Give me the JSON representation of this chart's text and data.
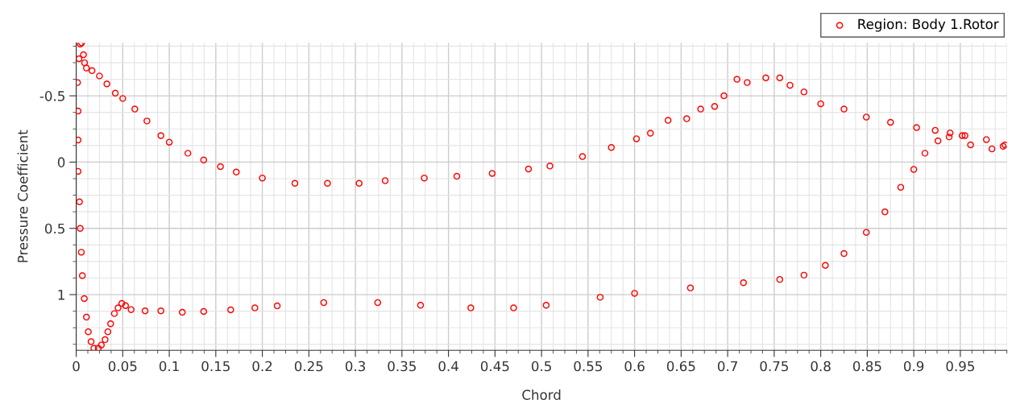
{
  "chart_data": {
    "type": "scatter",
    "xlabel": "Chord",
    "ylabel": "Pressure Coefficient",
    "xlim": [
      0,
      1
    ],
    "ylim": [
      1.42,
      -0.9
    ],
    "xticks": [
      0,
      0.05,
      0.1,
      0.15,
      0.2,
      0.25,
      0.3,
      0.35,
      0.4,
      0.45,
      0.5,
      0.55,
      0.6,
      0.65,
      0.7,
      0.75,
      0.8,
      0.85,
      0.9,
      0.95
    ],
    "yticks": [
      -0.5,
      0,
      0.5,
      1
    ],
    "grid": true,
    "legend": "top right",
    "marker": "circle",
    "series": [
      {
        "name": "Region: Body 1.Rotor",
        "color": "#ff0000",
        "x": [
          0.0014,
          0.003,
          0.0043,
          0.0058,
          0.0078,
          0.009,
          0.011,
          0.017,
          0.025,
          0.033,
          0.042,
          0.05,
          0.063,
          0.076,
          0.091,
          0.1,
          0.12,
          0.137,
          0.155,
          0.172,
          0.2,
          0.235,
          0.27,
          0.304,
          0.332,
          0.374,
          0.409,
          0.447,
          0.486,
          0.509,
          0.544,
          0.575,
          0.602,
          0.617,
          0.636,
          0.656,
          0.671,
          0.686,
          0.696,
          0.71,
          0.721,
          0.741,
          0.756,
          0.767,
          0.782,
          0.8,
          0.825,
          0.849,
          0.875,
          0.903,
          0.923,
          0.939,
          0.955,
          0.961,
          0.978,
          0.984,
          0.996,
          0.998,
          0.002,
          0.002,
          0.002,
          0.0035,
          0.0043,
          0.0055,
          0.0066,
          0.0087,
          0.011,
          0.013,
          0.016,
          0.019,
          0.0237,
          0.027,
          0.031,
          0.034,
          0.037,
          0.041,
          0.045,
          0.049,
          0.053,
          0.059,
          0.074,
          0.091,
          0.114,
          0.137,
          0.166,
          0.192,
          0.216,
          0.266,
          0.324,
          0.37,
          0.424,
          0.47,
          0.505,
          0.563,
          0.6,
          0.66,
          0.717,
          0.756,
          0.782,
          0.805,
          0.825,
          0.849,
          0.869,
          0.886,
          0.9,
          0.912,
          0.926,
          0.938,
          0.952
        ],
        "values": [
          -0.6,
          -0.78,
          -0.89,
          -0.9,
          -0.81,
          -0.75,
          -0.71,
          -0.69,
          -0.65,
          -0.59,
          -0.52,
          -0.48,
          -0.4,
          -0.31,
          -0.2,
          -0.15,
          -0.067,
          -0.016,
          0.034,
          0.075,
          0.12,
          0.16,
          0.16,
          0.16,
          0.14,
          0.12,
          0.107,
          0.085,
          0.052,
          0.03,
          -0.042,
          -0.11,
          -0.176,
          -0.218,
          -0.315,
          -0.327,
          -0.4,
          -0.42,
          -0.5,
          -0.625,
          -0.6,
          -0.635,
          -0.635,
          -0.58,
          -0.53,
          -0.44,
          -0.4,
          -0.34,
          -0.3,
          -0.26,
          -0.24,
          -0.22,
          -0.2,
          -0.13,
          -0.17,
          -0.1,
          -0.12,
          -0.13,
          -0.385,
          -0.167,
          0.07,
          0.3,
          0.5,
          0.68,
          0.857,
          1.03,
          1.17,
          1.28,
          1.355,
          1.405,
          1.405,
          1.38,
          1.34,
          1.28,
          1.22,
          1.143,
          1.1,
          1.067,
          1.083,
          1.113,
          1.123,
          1.123,
          1.133,
          1.127,
          1.115,
          1.1,
          1.085,
          1.06,
          1.06,
          1.08,
          1.1,
          1.1,
          1.08,
          1.02,
          0.99,
          0.95,
          0.91,
          0.885,
          0.853,
          0.78,
          0.69,
          0.53,
          0.376,
          0.19,
          0.055,
          -0.067,
          -0.16,
          -0.19,
          -0.2
        ]
      }
    ]
  }
}
